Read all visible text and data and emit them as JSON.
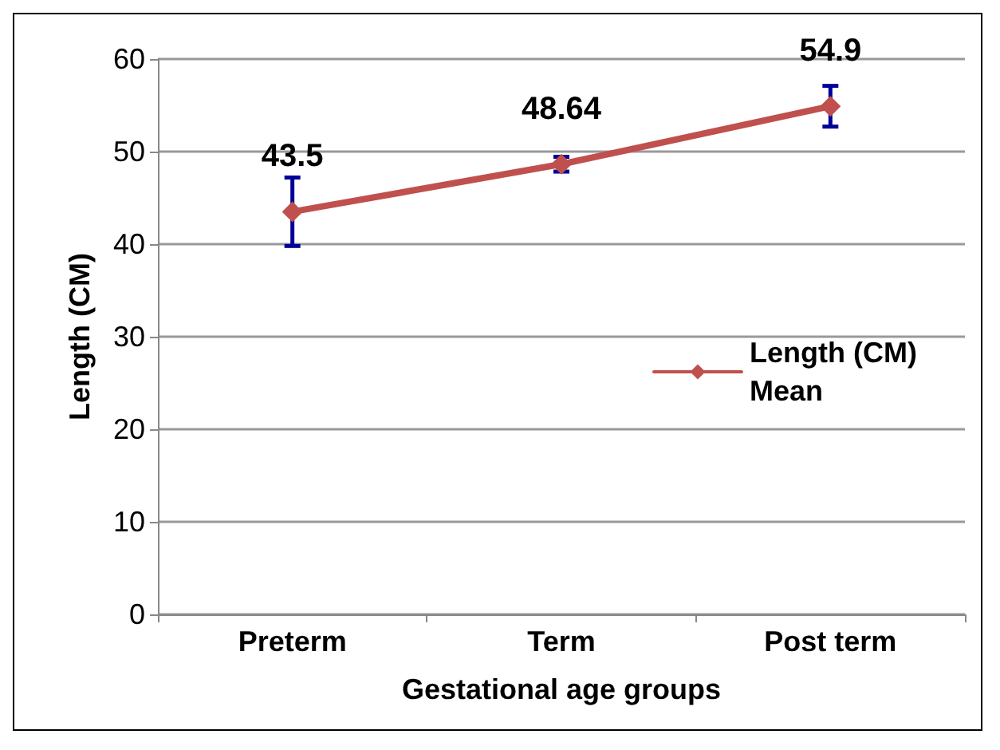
{
  "chart_data": {
    "type": "line",
    "xlabel": "Gestational age groups",
    "ylabel": "Length (CM)",
    "categories": [
      "Preterm",
      "Term",
      "Post term"
    ],
    "series": [
      {
        "name": "Length (CM) Mean",
        "color": "#c0504d",
        "values": [
          43.5,
          48.64,
          54.9
        ],
        "errors": [
          3.7,
          0.8,
          2.2
        ]
      }
    ],
    "ylim": [
      0,
      60
    ],
    "yticks": [
      0,
      10,
      20,
      30,
      40,
      50,
      60
    ],
    "grid": "y",
    "legend": "right",
    "marker": "diamond",
    "line_style": "solid",
    "data_labels": true
  }
}
